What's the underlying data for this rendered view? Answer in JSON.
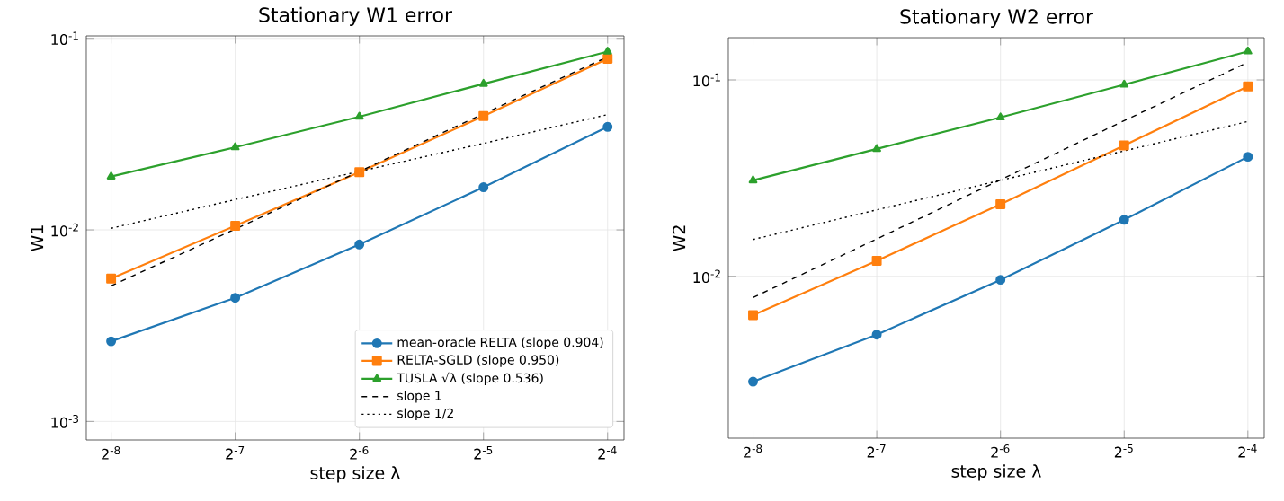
{
  "chart_data": [
    {
      "type": "line",
      "title": "Stationary W1 error",
      "xlabel": "step size λ",
      "ylabel": "W1",
      "log": "xy",
      "grid": true,
      "legend": "bottom right",
      "x": [
        0.00390625,
        0.0078125,
        0.015625,
        0.03125,
        0.0625
      ],
      "xlim": [
        0.0034,
        0.0685
      ],
      "ylim": [
        0.0008,
        0.103
      ],
      "xticks": [
        {
          "value": 0.00390625,
          "label": "2$^{-8}$"
        },
        {
          "value": 0.0078125,
          "label": "2$^{-7}$"
        },
        {
          "value": 0.015625,
          "label": "2$^{-6}$"
        },
        {
          "value": 0.03125,
          "label": "2$^{-5}$"
        },
        {
          "value": 0.0625,
          "label": "2$^{-4}$"
        }
      ],
      "yticks": [
        {
          "value": 0.001,
          "label": "10$^{-3}$"
        },
        {
          "value": 0.01,
          "label": "10$^{-2}$"
        },
        {
          "value": 0.1,
          "label": "10$^{-1}$"
        }
      ],
      "series": [
        {
          "name": "mean-oracle RELTA (slope 0.904)",
          "color": "#1f77b4",
          "marker": "circle",
          "values": [
            0.00262,
            0.00442,
            0.00839,
            0.0167,
            0.0345
          ]
        },
        {
          "name": "RELTA-SGLD (slope 0.950)",
          "color": "#ff7f0e",
          "marker": "square",
          "values": [
            0.00557,
            0.0105,
            0.02,
            0.0393,
            0.0783
          ]
        },
        {
          "name": "TUSLA √λ (slope 0.536)",
          "color": "#2ca02c",
          "marker": "triangle",
          "values": [
            0.019,
            0.027,
            0.039,
            0.0579,
            0.0853
          ]
        },
        {
          "name": "slope 1",
          "color": "#000000",
          "marker": "none",
          "line_style": "dashed",
          "values": [
            0.0051,
            0.0101,
            0.0202,
            0.0404,
            0.08
          ]
        },
        {
          "name": "slope 1/2",
          "color": "#000000",
          "marker": "none",
          "line_style": "dotted",
          "values": [
            0.0102,
            0.0144,
            0.0202,
            0.0283,
            0.04
          ]
        }
      ]
    },
    {
      "type": "line",
      "title": "Stationary W2 error",
      "xlabel": "step size λ",
      "ylabel": "W2",
      "log": "xy",
      "grid": true,
      "x": [
        0.00390625,
        0.0078125,
        0.015625,
        0.03125,
        0.0625
      ],
      "xlim": [
        0.0034,
        0.0685
      ],
      "ylim": [
        0.0015,
        0.164
      ],
      "xticks": [
        {
          "value": 0.00390625,
          "label": "2$^{-8}$"
        },
        {
          "value": 0.0078125,
          "label": "2$^{-7}$"
        },
        {
          "value": 0.015625,
          "label": "2$^{-6}$"
        },
        {
          "value": 0.03125,
          "label": "2$^{-5}$"
        },
        {
          "value": 0.0625,
          "label": "2$^{-4}$"
        }
      ],
      "yticks": [
        {
          "value": 0.01,
          "label": "10$^{-2}$"
        },
        {
          "value": 0.1,
          "label": "10$^{-1}$"
        }
      ],
      "series": [
        {
          "color": "#1f77b4",
          "marker": "circle",
          "values": [
            0.00291,
            0.00505,
            0.0096,
            0.0194,
            0.0406
          ]
        },
        {
          "color": "#ff7f0e",
          "marker": "square",
          "values": [
            0.00635,
            0.012,
            0.0233,
            0.0464,
            0.0926
          ]
        },
        {
          "color": "#2ca02c",
          "marker": "triangle",
          "values": [
            0.0308,
            0.0445,
            0.0644,
            0.0946,
            0.1397
          ]
        },
        {
          "color": "#000000",
          "marker": "none",
          "line_style": "dashed",
          "values": [
            0.0078,
            0.0155,
            0.031,
            0.062,
            0.123
          ]
        },
        {
          "color": "#000000",
          "marker": "none",
          "line_style": "dotted",
          "values": [
            0.0154,
            0.0218,
            0.0308,
            0.0435,
            0.0614
          ]
        }
      ]
    }
  ]
}
